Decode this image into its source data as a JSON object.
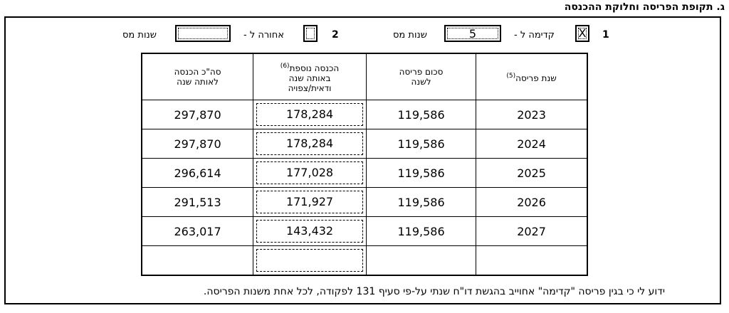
{
  "section_title": "ג. תקופת הפריסה וחלוקת ההכנסה",
  "options": {
    "option1": {
      "number": "1",
      "checked_mark": "X",
      "label_before": "קדימה ל -",
      "years_value": "5",
      "label_after": "שנות מס"
    },
    "option2": {
      "number": "2",
      "checked_mark": "",
      "label_before": "אחורה ל -",
      "years_value": "",
      "label_after": "שנות מס"
    }
  },
  "table": {
    "headers": {
      "year": "שנת פריסה",
      "year_note": "(5)",
      "spread_amount_l1": "סכום פריסה",
      "spread_amount_l2": "לשנה",
      "additional_l1": "הכנסה נוספת",
      "additional_note": "(6)",
      "additional_l2": "באותה שנה",
      "additional_l3": "ודאית/צפויה",
      "total_l1": "סה\"כ הכנסה",
      "total_l2": "לאותה שנה"
    },
    "rows": [
      {
        "year": "2023",
        "amount": "119,586",
        "additional": "178,284",
        "total": "297,870"
      },
      {
        "year": "2024",
        "amount": "119,586",
        "additional": "178,284",
        "total": "297,870"
      },
      {
        "year": "2025",
        "amount": "119,586",
        "additional": "177,028",
        "total": "296,614"
      },
      {
        "year": "2026",
        "amount": "119,586",
        "additional": "171,927",
        "total": "291,513"
      },
      {
        "year": "2027",
        "amount": "119,586",
        "additional": "143,432",
        "total": "263,017"
      },
      {
        "year": "",
        "amount": "",
        "additional": "",
        "total": ""
      }
    ]
  },
  "footer_text": "ידוע לי כי בגין פריסה \"קדימה\" אחוייב בהגשת דו\"ח שנתי על-פי סעיף 131 לפקודה, לכל אחת משנות הפריסה."
}
